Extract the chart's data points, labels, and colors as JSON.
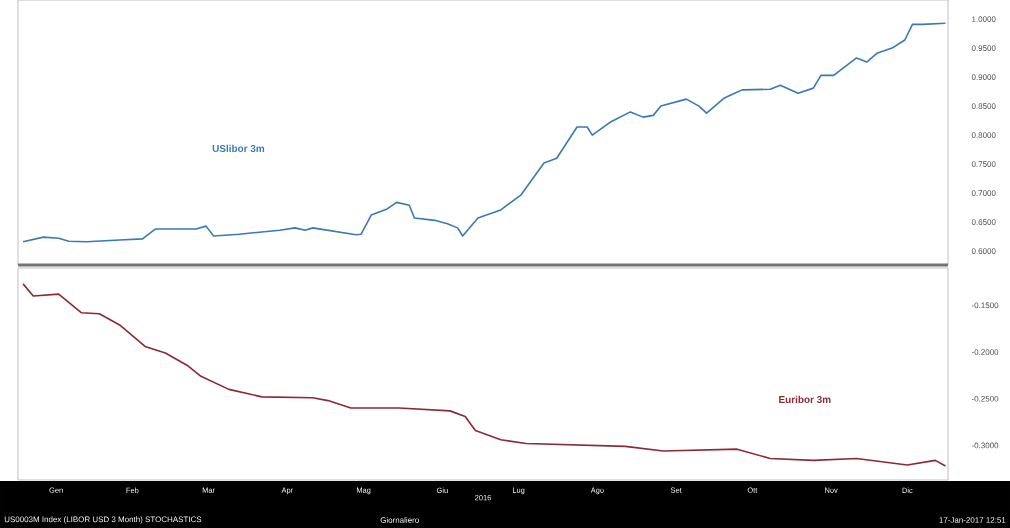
{
  "chart_data": [
    {
      "type": "line",
      "tick_labels": "y",
      "xlim": [
        "2016-01-01",
        "2017-01-01"
      ],
      "ylim": [
        0.576,
        1.033
      ],
      "xticks": [
        {
          "value": "2016-01-16",
          "label": null
        },
        {
          "value": "2016-02-15",
          "label": null
        },
        {
          "value": "2016-03-16",
          "label": null
        },
        {
          "value": "2016-04-16",
          "label": null
        },
        {
          "value": "2016-05-16",
          "label": null
        },
        {
          "value": "2016-06-16",
          "label": null
        },
        {
          "value": "2016-07-16",
          "label": null
        },
        {
          "value": "2016-08-16",
          "label": null
        },
        {
          "value": "2016-09-16",
          "label": null
        },
        {
          "value": "2016-10-16",
          "label": null
        },
        {
          "value": "2016-11-16",
          "label": null
        },
        {
          "value": "2016-12-16",
          "label": null
        }
      ],
      "yticks": [
        {
          "value": 0.6,
          "label": "0.6000"
        },
        {
          "value": 0.65,
          "label": "0.6500"
        },
        {
          "value": 0.7,
          "label": "0.7000"
        },
        {
          "value": 0.75,
          "label": "0.7500"
        },
        {
          "value": 0.8,
          "label": "0.8000"
        },
        {
          "value": 0.85,
          "label": "0.8500"
        },
        {
          "value": 0.9,
          "label": "0.9000"
        },
        {
          "value": 0.95,
          "label": "0.9500"
        },
        {
          "value": 1.0,
          "label": "1.0000"
        }
      ],
      "series": [
        {
          "name": "USlibor 3m",
          "color": "#3a78b8",
          "x": [
            "2016-01-03",
            "2016-01-11",
            "2016-01-17",
            "2016-01-21",
            "2016-01-28",
            "2016-02-10",
            "2016-02-19",
            "2016-02-24",
            "2016-03-11",
            "2016-03-15",
            "2016-03-18",
            "2016-03-28",
            "2016-04-13",
            "2016-04-19",
            "2016-04-23",
            "2016-04-26",
            "2016-05-13",
            "2016-05-15",
            "2016-05-19",
            "2016-05-25",
            "2016-05-29",
            "2016-06-03",
            "2016-06-05",
            "2016-06-13",
            "2016-06-18",
            "2016-06-22",
            "2016-06-24",
            "2016-06-30",
            "2016-07-09",
            "2016-07-17",
            "2016-07-26",
            "2016-07-31",
            "2016-08-08",
            "2016-08-12",
            "2016-08-14",
            "2016-08-21",
            "2016-08-29",
            "2016-09-03",
            "2016-09-07",
            "2016-09-10",
            "2016-09-20",
            "2016-09-25",
            "2016-09-28",
            "2016-10-05",
            "2016-10-09",
            "2016-10-12",
            "2016-10-23",
            "2016-10-27",
            "2016-11-03",
            "2016-11-09",
            "2016-11-12",
            "2016-11-17",
            "2016-11-26",
            "2016-11-30",
            "2016-12-04",
            "2016-12-10",
            "2016-12-15",
            "2016-12-18",
            "2016-12-22",
            "2016-12-31"
          ],
          "values": [
            0.616,
            0.624,
            0.622,
            0.617,
            0.616,
            0.619,
            0.621,
            0.638,
            0.638,
            0.643,
            0.626,
            0.629,
            0.636,
            0.64,
            0.636,
            0.64,
            0.628,
            0.629,
            0.662,
            0.672,
            0.684,
            0.679,
            0.657,
            0.653,
            0.647,
            0.64,
            0.626,
            0.657,
            0.671,
            0.697,
            0.752,
            0.76,
            0.814,
            0.814,
            0.8,
            0.822,
            0.84,
            0.831,
            0.834,
            0.85,
            0.862,
            0.85,
            0.838,
            0.864,
            0.872,
            0.878,
            0.879,
            0.886,
            0.872,
            0.881,
            0.903,
            0.903,
            0.933,
            0.926,
            0.941,
            0.95,
            0.964,
            0.991,
            0.991,
            0.993
          ]
        }
      ]
    },
    {
      "type": "line",
      "xlim": [
        "2016-01-01",
        "2017-01-01"
      ],
      "ylim": [
        -0.337,
        -0.11
      ],
      "xlabel": "2016",
      "xticks": [
        {
          "value": "2016-01-16",
          "label": "Gen"
        },
        {
          "value": "2016-02-15",
          "label": "Feb"
        },
        {
          "value": "2016-03-16",
          "label": "Mar"
        },
        {
          "value": "2016-04-16",
          "label": "Apr"
        },
        {
          "value": "2016-05-16",
          "label": "Mag"
        },
        {
          "value": "2016-06-16",
          "label": "Giu"
        },
        {
          "value": "2016-07-16",
          "label": "Lug"
        },
        {
          "value": "2016-08-16",
          "label": "Ago"
        },
        {
          "value": "2016-09-16",
          "label": "Set"
        },
        {
          "value": "2016-10-16",
          "label": "Ott"
        },
        {
          "value": "2016-11-16",
          "label": "Nov"
        },
        {
          "value": "2016-12-16",
          "label": "Dic"
        }
      ],
      "yticks": [
        {
          "value": -0.3,
          "label": "-0.3000"
        },
        {
          "value": -0.25,
          "label": "-0.2500"
        },
        {
          "value": -0.2,
          "label": "-0.2000"
        },
        {
          "value": -0.15,
          "label": "-0.1500"
        }
      ],
      "annotations": [
        "US0003M Index (LIBOR USD 3 Month) STOCHASTICS",
        "Giornaliero",
        "17-Jan-2017 12:51"
      ],
      "series": [
        {
          "name": "Euribor 3m",
          "color": "#8b2a33",
          "x": [
            "2016-01-03",
            "2016-01-07",
            "2016-01-17",
            "2016-01-26",
            "2016-02-02",
            "2016-02-10",
            "2016-02-20",
            "2016-02-28",
            "2016-03-08",
            "2016-03-13",
            "2016-03-24",
            "2016-04-06",
            "2016-04-26",
            "2016-05-02",
            "2016-05-11",
            "2016-05-30",
            "2016-06-19",
            "2016-06-25",
            "2016-06-29",
            "2016-07-09",
            "2016-07-19",
            "2016-08-27",
            "2016-09-11",
            "2016-10-10",
            "2016-10-23",
            "2016-11-09",
            "2016-11-26",
            "2016-12-16",
            "2016-12-27",
            "2016-12-31"
          ],
          "values": [
            -0.127,
            -0.14,
            -0.138,
            -0.158,
            -0.159,
            -0.171,
            -0.194,
            -0.201,
            -0.215,
            -0.226,
            -0.24,
            -0.248,
            -0.249,
            -0.252,
            -0.26,
            -0.26,
            -0.263,
            -0.269,
            -0.284,
            -0.294,
            -0.298,
            -0.301,
            -0.306,
            -0.304,
            -0.314,
            -0.316,
            -0.314,
            -0.321,
            -0.316,
            -0.322
          ]
        }
      ]
    }
  ]
}
